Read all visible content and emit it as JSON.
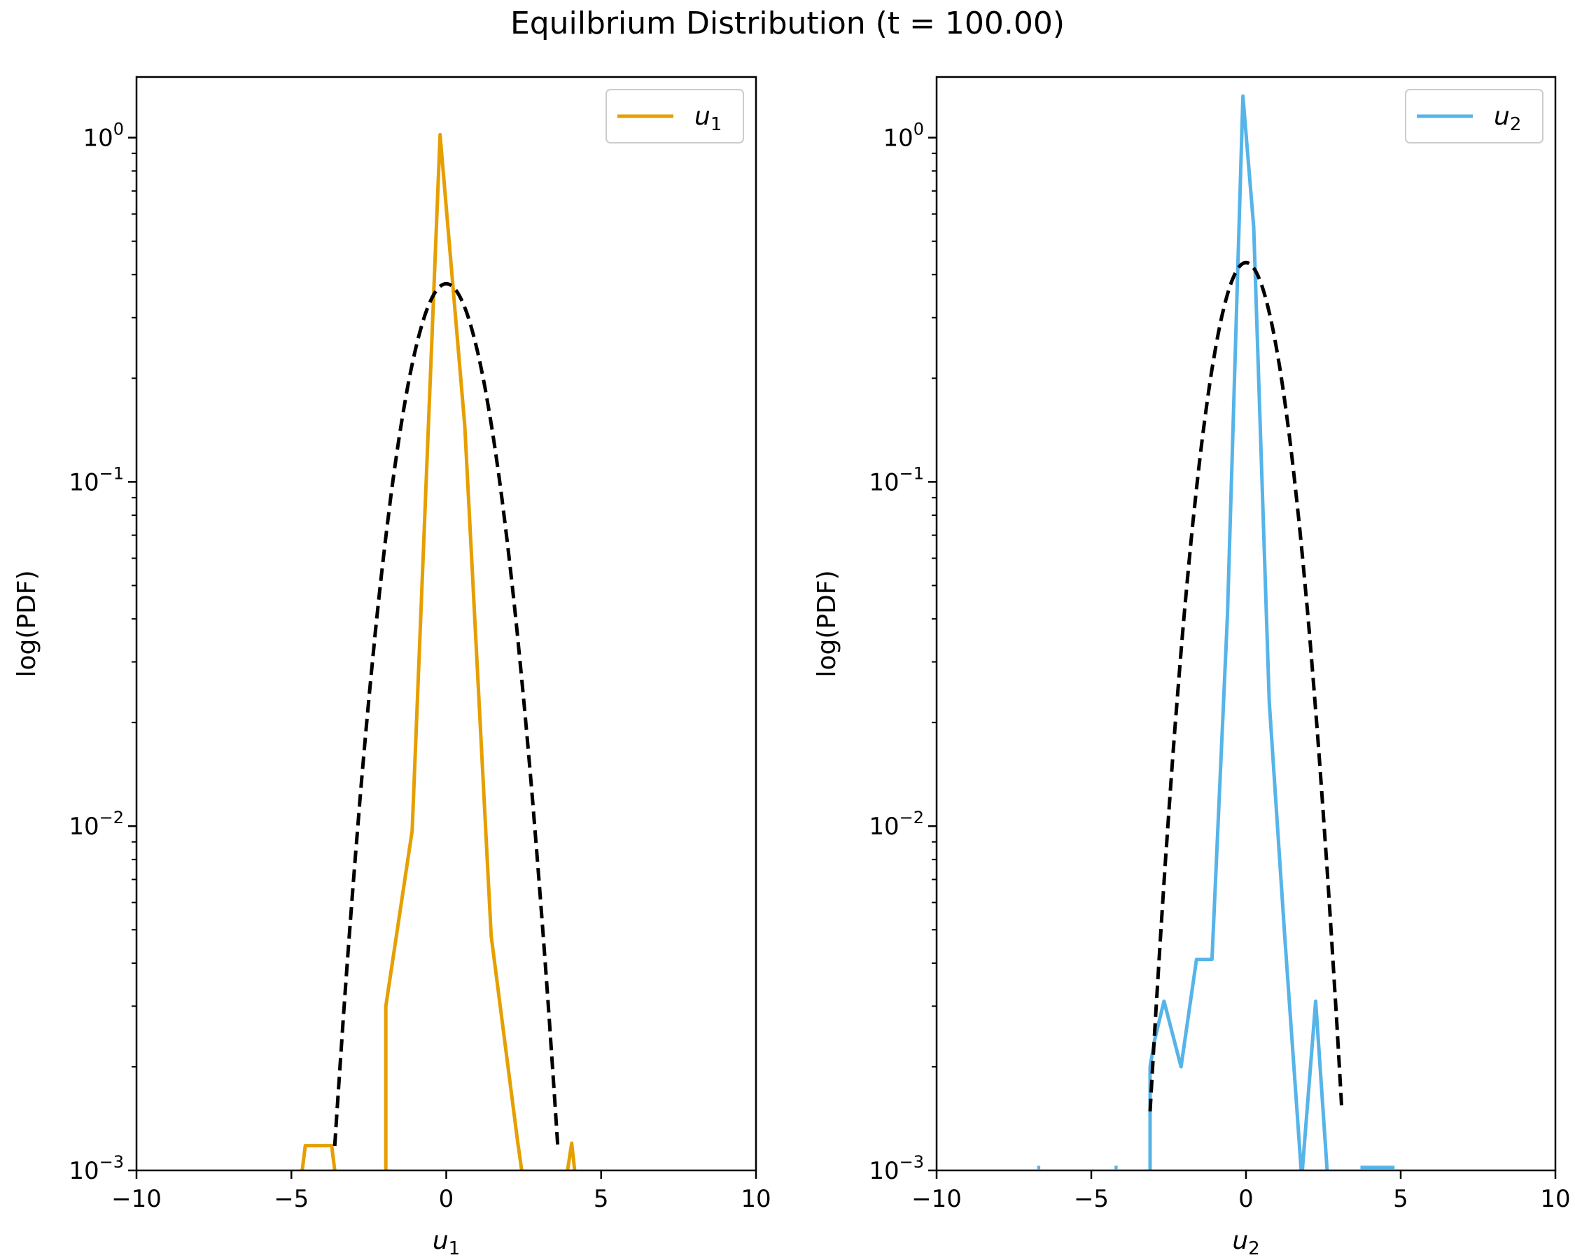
{
  "figure": {
    "suptitle": "Equilbrium Distribution (t = 100.00)"
  },
  "chart_data": [
    {
      "type": "line",
      "title": "",
      "xlabel": "u",
      "xlabel_sub": "1",
      "ylabel": "log(PDF)",
      "xlim": [
        -10,
        10
      ],
      "ylim": [
        0.001,
        1.5
      ],
      "yscale": "log",
      "xticks": [
        -10,
        -5,
        0,
        5,
        10
      ],
      "xtick_labels": [
        "−10",
        "−5",
        "0",
        "5",
        "10"
      ],
      "yticks": [
        {
          "value": 1,
          "base": "10",
          "exp": "0"
        },
        {
          "value": 0.1,
          "base": "10",
          "exp": "−1"
        },
        {
          "value": 0.01,
          "base": "10",
          "exp": "−2"
        },
        {
          "value": 0.001,
          "base": "10",
          "exp": "−3"
        }
      ],
      "grid": false,
      "legend_position": "top-right",
      "series": [
        {
          "name": "u",
          "name_sub": "1",
          "color": "#E69F00",
          "style": "solid",
          "x": [
            -4.75,
            -4.55,
            -3.7,
            -3.55,
            -3.5,
            -3.4,
            -1.95,
            -1.95,
            -1.1,
            -0.2,
            0.6,
            1.45,
            2.3,
            2.45,
            2.55,
            3.7,
            3.9,
            4.05,
            4.2
          ],
          "y": [
            0.00085,
            0.00118,
            0.00118,
            0.00092,
            0.00092,
            0.00092,
            0.00092,
            0.003,
            0.0097,
            1.02,
            0.145,
            0.0048,
            0.00122,
            0.00098,
            0.00092,
            0.00092,
            0.00098,
            0.0012,
            0.0009
          ]
        },
        {
          "name": "",
          "color": "#000000",
          "style": "dashed",
          "gaussian": {
            "mean": 0.0,
            "sigma": 1.06,
            "x_from": -3.6,
            "x_to": 3.6
          }
        }
      ]
    },
    {
      "type": "line",
      "title": "",
      "xlabel": "u",
      "xlabel_sub": "2",
      "ylabel": "log(PDF)",
      "xlim": [
        -10,
        10
      ],
      "ylim": [
        0.001,
        1.5
      ],
      "yscale": "log",
      "xticks": [
        -10,
        -5,
        0,
        5,
        10
      ],
      "xtick_labels": [
        "−10",
        "−5",
        "0",
        "5",
        "10"
      ],
      "yticks": [
        {
          "value": 1,
          "base": "10",
          "exp": "0"
        },
        {
          "value": 0.1,
          "base": "10",
          "exp": "−1"
        },
        {
          "value": 0.01,
          "base": "10",
          "exp": "−2"
        },
        {
          "value": 0.001,
          "base": "10",
          "exp": "−3"
        }
      ],
      "grid": false,
      "legend_position": "top-right",
      "series": [
        {
          "name": "u",
          "name_sub": "2",
          "color": "#56B4E9",
          "style": "solid",
          "x": [
            -3.1,
            -3.1,
            -2.95,
            -2.65,
            -2.1,
            -1.6,
            -1.1,
            -0.6,
            -0.1,
            0.25,
            0.75,
            1.25,
            1.8,
            2.25,
            2.65
          ],
          "y": [
            0.00092,
            0.002,
            0.0024,
            0.0031,
            0.002,
            0.0041,
            0.0041,
            0.041,
            1.32,
            0.55,
            0.023,
            0.0048,
            0.00095,
            0.0031,
            0.00092
          ],
          "extra_segments": [
            {
              "x": [
                -6.75,
                -6.65
              ],
              "y": [
                0.00102,
                0.00102
              ]
            },
            {
              "x": [
                -4.25,
                -4.15
              ],
              "y": [
                0.00102,
                0.00102
              ]
            },
            {
              "x": [
                3.7,
                4.8
              ],
              "y": [
                0.00102,
                0.00102
              ]
            }
          ]
        },
        {
          "name": "",
          "color": "#000000",
          "style": "dashed",
          "gaussian": {
            "mean": 0.0,
            "sigma": 0.92,
            "x_from": -3.1,
            "x_to": 3.1
          }
        }
      ]
    }
  ]
}
